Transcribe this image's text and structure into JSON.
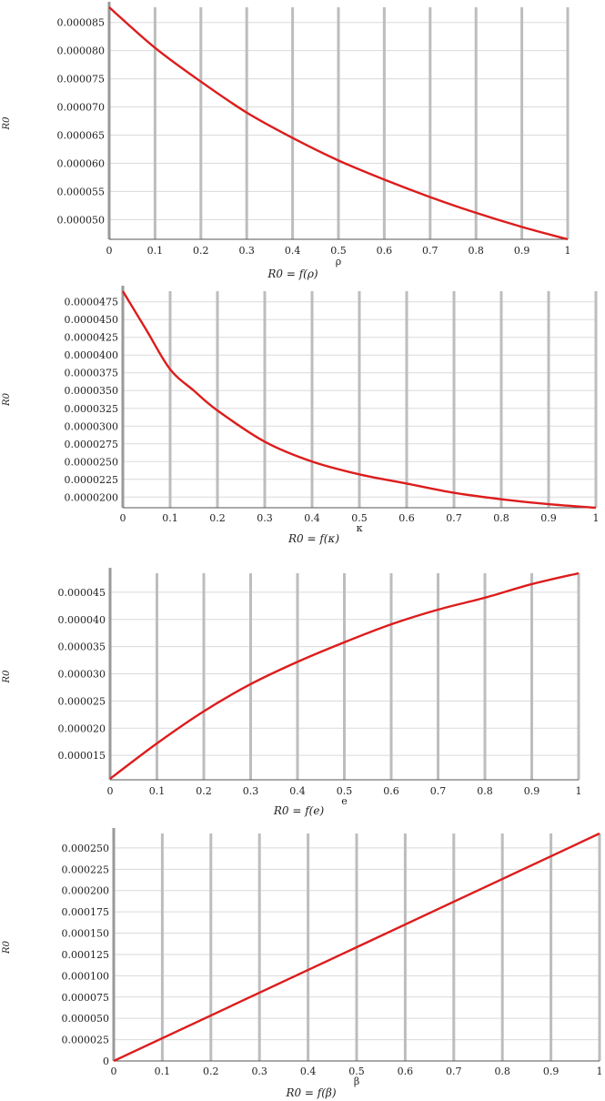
{
  "chart_data": [
    {
      "type": "line",
      "title": "",
      "xlabel": "ρ",
      "ylabel": "R0",
      "caption": "R0 = f(ρ)",
      "xlim": [
        0,
        1
      ],
      "ylim": [
        4.65e-05,
        8.77e-05
      ],
      "x_ticks": [
        "0",
        "0.1",
        "0.2",
        "0.3",
        "0.4",
        "0.5",
        "0.6",
        "0.7",
        "0.8",
        "0.9",
        "1"
      ],
      "y_ticks": [
        {
          "value": 5e-05,
          "label": "0.000050"
        },
        {
          "value": 5.5e-05,
          "label": "0.000055"
        },
        {
          "value": 6e-05,
          "label": "0.000060"
        },
        {
          "value": 6.5e-05,
          "label": "0.000065"
        },
        {
          "value": 7e-05,
          "label": "0.000070"
        },
        {
          "value": 7.5e-05,
          "label": "0.000075"
        },
        {
          "value": 8e-05,
          "label": "0.000080"
        },
        {
          "value": 8.5e-05,
          "label": "0.000085"
        }
      ],
      "grid": true,
      "color": "#dd1c1c",
      "series": [
        {
          "x": [
            0,
            0.1,
            0.2,
            0.3,
            0.4,
            0.5,
            0.6,
            0.7,
            0.8,
            0.9,
            1
          ],
          "y": [
            8.77e-05,
            8.05e-05,
            7.45e-05,
            6.9e-05,
            6.45e-05,
            6.05e-05,
            5.71e-05,
            5.4e-05,
            5.12e-05,
            4.87e-05,
            4.65e-05
          ]
        }
      ]
    },
    {
      "type": "line",
      "title": "",
      "xlabel": "κ",
      "ylabel": "R0",
      "caption": "R0 = f(κ)",
      "xlim": [
        0,
        1
      ],
      "ylim": [
        1.85e-05,
        4.9e-05
      ],
      "x_ticks": [
        "0",
        "0.1",
        "0.2",
        "0.3",
        "0.4",
        "0.5",
        "0.6",
        "0.7",
        "0.8",
        "0.9",
        "1"
      ],
      "y_ticks": [
        {
          "value": 2e-05,
          "label": "0.0000200"
        },
        {
          "value": 2.25e-05,
          "label": "0.0000225"
        },
        {
          "value": 2.5e-05,
          "label": "0.0000250"
        },
        {
          "value": 2.75e-05,
          "label": "0.0000275"
        },
        {
          "value": 3e-05,
          "label": "0.0000300"
        },
        {
          "value": 3.25e-05,
          "label": "0.0000325"
        },
        {
          "value": 3.5e-05,
          "label": "0.0000350"
        },
        {
          "value": 3.75e-05,
          "label": "0.0000375"
        },
        {
          "value": 4e-05,
          "label": "0.0000400"
        },
        {
          "value": 4.25e-05,
          "label": "0.0000425"
        },
        {
          "value": 4.5e-05,
          "label": "0.0000450"
        },
        {
          "value": 4.75e-05,
          "label": "0.0000475"
        }
      ],
      "grid": true,
      "color": "#dd1c1c",
      "series": [
        {
          "x": [
            0,
            0.05,
            0.1,
            0.15,
            0.2,
            0.3,
            0.4,
            0.5,
            0.6,
            0.7,
            0.8,
            0.9,
            1
          ],
          "y": [
            4.9e-05,
            4.35e-05,
            3.8e-05,
            3.5e-05,
            3.22e-05,
            2.78e-05,
            2.5e-05,
            2.32e-05,
            2.19e-05,
            2.06e-05,
            1.97e-05,
            1.9e-05,
            1.85e-05
          ]
        }
      ]
    },
    {
      "type": "line",
      "title": "",
      "xlabel": "e",
      "ylabel": "R0",
      "caption": "R0 = f(e)",
      "xlim": [
        0,
        1
      ],
      "ylim": [
        1.05e-05,
        4.85e-05
      ],
      "x_ticks": [
        "0",
        "0.1",
        "0.2",
        "0.3",
        "0.4",
        "0.5",
        "0.6",
        "0.7",
        "0.8",
        "0.9",
        "1"
      ],
      "y_ticks": [
        {
          "value": 1.5e-05,
          "label": "0.000015"
        },
        {
          "value": 2e-05,
          "label": "0.000020"
        },
        {
          "value": 2.5e-05,
          "label": "0.000025"
        },
        {
          "value": 3e-05,
          "label": "0.000030"
        },
        {
          "value": 3.5e-05,
          "label": "0.000035"
        },
        {
          "value": 4e-05,
          "label": "0.000040"
        },
        {
          "value": 4.5e-05,
          "label": "0.000045"
        }
      ],
      "grid": true,
      "color": "#dd1c1c",
      "series": [
        {
          "x": [
            0,
            0.1,
            0.2,
            0.3,
            0.4,
            0.5,
            0.6,
            0.7,
            0.8,
            0.9,
            1
          ],
          "y": [
            1.07e-05,
            1.72e-05,
            2.31e-05,
            2.81e-05,
            3.22e-05,
            3.58e-05,
            3.91e-05,
            4.18e-05,
            4.4e-05,
            4.65e-05,
            4.85e-05
          ]
        }
      ]
    },
    {
      "type": "line",
      "title": "",
      "xlabel": "β",
      "ylabel": "R0",
      "caption": "R0 = f(β)",
      "xlim": [
        0,
        1
      ],
      "ylim": [
        0,
        0.000267
      ],
      "x_ticks": [
        "0",
        "0.1",
        "0.2",
        "0.3",
        "0.4",
        "0.5",
        "0.6",
        "0.7",
        "0.8",
        "0.9",
        "1"
      ],
      "y_ticks": [
        {
          "value": 0,
          "label": "0"
        },
        {
          "value": 2.5e-05,
          "label": "0.000025"
        },
        {
          "value": 5e-05,
          "label": "0.000050"
        },
        {
          "value": 7.5e-05,
          "label": "0.000075"
        },
        {
          "value": 0.0001,
          "label": "0.000100"
        },
        {
          "value": 0.000125,
          "label": "0.000125"
        },
        {
          "value": 0.00015,
          "label": "0.000150"
        },
        {
          "value": 0.000175,
          "label": "0.000175"
        },
        {
          "value": 0.0002,
          "label": "0.000200"
        },
        {
          "value": 0.000225,
          "label": "0.000225"
        },
        {
          "value": 0.00025,
          "label": "0.000250"
        }
      ],
      "grid": true,
      "color": "#dd1c1c",
      "series": [
        {
          "x": [
            0,
            1
          ],
          "y": [
            0,
            0.000267
          ]
        }
      ]
    }
  ]
}
